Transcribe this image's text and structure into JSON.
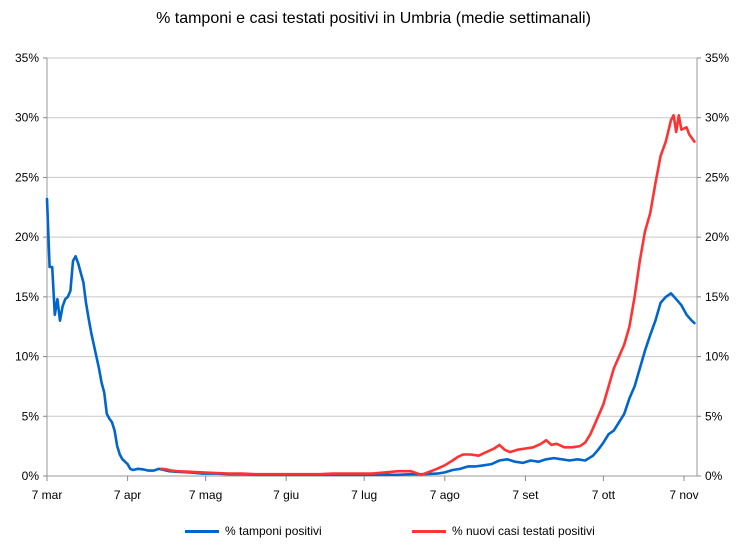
{
  "chart_data": {
    "type": "line",
    "title": "% tamponi e casi testati positivi in Umbria (medie settimanali)",
    "xlabel": "",
    "ylabel": "",
    "x_ticks": [
      "7 mar",
      "7 apr",
      "7 mag",
      "7 giu",
      "7 lug",
      "7 ago",
      "7 set",
      "7 ott",
      "7 nov"
    ],
    "x_tick_days": [
      0,
      31,
      61,
      92,
      122,
      153,
      184,
      214,
      245
    ],
    "x_range_days": [
      0,
      250
    ],
    "y_ticks": [
      "0%",
      "5%",
      "10%",
      "15%",
      "20%",
      "25%",
      "30%",
      "35%"
    ],
    "ylim": [
      0,
      35
    ],
    "grid": true,
    "legend_position": "bottom",
    "series": [
      {
        "name": "% tamponi positivi",
        "color": "#0066cc",
        "points": [
          [
            0,
            23.2
          ],
          [
            1,
            17.5
          ],
          [
            2,
            17.5
          ],
          [
            3,
            13.5
          ],
          [
            4,
            14.8
          ],
          [
            5,
            13.0
          ],
          [
            6,
            14.2
          ],
          [
            7,
            14.8
          ],
          [
            8,
            15.0
          ],
          [
            9,
            15.5
          ],
          [
            10,
            18.0
          ],
          [
            11,
            18.4
          ],
          [
            12,
            17.8
          ],
          [
            13,
            17.0
          ],
          [
            14,
            16.2
          ],
          [
            15,
            14.5
          ],
          [
            16,
            13.2
          ],
          [
            17,
            12.0
          ],
          [
            18,
            11.0
          ],
          [
            19,
            10.0
          ],
          [
            20,
            9.0
          ],
          [
            21,
            7.8
          ],
          [
            22,
            7.0
          ],
          [
            23,
            5.2
          ],
          [
            24,
            4.8
          ],
          [
            25,
            4.5
          ],
          [
            26,
            3.8
          ],
          [
            27,
            2.5
          ],
          [
            28,
            1.8
          ],
          [
            29,
            1.4
          ],
          [
            30,
            1.2
          ],
          [
            31,
            1.0
          ],
          [
            32,
            0.6
          ],
          [
            33,
            0.5
          ],
          [
            35,
            0.6
          ],
          [
            37,
            0.55
          ],
          [
            39,
            0.45
          ],
          [
            41,
            0.45
          ],
          [
            43,
            0.6
          ],
          [
            45,
            0.5
          ],
          [
            47,
            0.4
          ],
          [
            50,
            0.35
          ],
          [
            55,
            0.3
          ],
          [
            60,
            0.2
          ],
          [
            65,
            0.2
          ],
          [
            70,
            0.15
          ],
          [
            75,
            0.15
          ],
          [
            80,
            0.1
          ],
          [
            85,
            0.1
          ],
          [
            90,
            0.1
          ],
          [
            95,
            0.1
          ],
          [
            100,
            0.1
          ],
          [
            105,
            0.1
          ],
          [
            110,
            0.1
          ],
          [
            115,
            0.1
          ],
          [
            120,
            0.1
          ],
          [
            125,
            0.1
          ],
          [
            130,
            0.1
          ],
          [
            135,
            0.1
          ],
          [
            140,
            0.15
          ],
          [
            145,
            0.15
          ],
          [
            150,
            0.2
          ],
          [
            153,
            0.3
          ],
          [
            156,
            0.5
          ],
          [
            159,
            0.6
          ],
          [
            162,
            0.8
          ],
          [
            165,
            0.8
          ],
          [
            168,
            0.9
          ],
          [
            171,
            1.0
          ],
          [
            174,
            1.3
          ],
          [
            177,
            1.4
          ],
          [
            180,
            1.2
          ],
          [
            183,
            1.1
          ],
          [
            186,
            1.3
          ],
          [
            189,
            1.2
          ],
          [
            192,
            1.4
          ],
          [
            195,
            1.5
          ],
          [
            198,
            1.4
          ],
          [
            201,
            1.3
          ],
          [
            204,
            1.4
          ],
          [
            207,
            1.3
          ],
          [
            210,
            1.7
          ],
          [
            212,
            2.2
          ],
          [
            214,
            2.8
          ],
          [
            216,
            3.5
          ],
          [
            218,
            3.8
          ],
          [
            220,
            4.5
          ],
          [
            222,
            5.2
          ],
          [
            224,
            6.5
          ],
          [
            226,
            7.5
          ],
          [
            228,
            9.0
          ],
          [
            230,
            10.5
          ],
          [
            232,
            11.8
          ],
          [
            234,
            13.0
          ],
          [
            236,
            14.5
          ],
          [
            238,
            15.0
          ],
          [
            240,
            15.3
          ],
          [
            242,
            14.8
          ],
          [
            244,
            14.3
          ],
          [
            246,
            13.5
          ],
          [
            248,
            13.0
          ],
          [
            249,
            12.8
          ]
        ]
      },
      {
        "name": "% nuovi casi testati positivi",
        "color": "#ff3333",
        "points": [
          [
            44,
            0.6
          ],
          [
            46,
            0.55
          ],
          [
            48,
            0.45
          ],
          [
            50,
            0.4
          ],
          [
            55,
            0.35
          ],
          [
            60,
            0.3
          ],
          [
            65,
            0.25
          ],
          [
            70,
            0.2
          ],
          [
            75,
            0.2
          ],
          [
            80,
            0.15
          ],
          [
            85,
            0.15
          ],
          [
            90,
            0.15
          ],
          [
            95,
            0.15
          ],
          [
            100,
            0.15
          ],
          [
            105,
            0.15
          ],
          [
            110,
            0.2
          ],
          [
            115,
            0.2
          ],
          [
            120,
            0.2
          ],
          [
            125,
            0.2
          ],
          [
            130,
            0.3
          ],
          [
            135,
            0.4
          ],
          [
            140,
            0.4
          ],
          [
            144,
            0.1
          ],
          [
            147,
            0.35
          ],
          [
            150,
            0.6
          ],
          [
            153,
            0.9
          ],
          [
            156,
            1.3
          ],
          [
            158,
            1.6
          ],
          [
            160,
            1.8
          ],
          [
            163,
            1.8
          ],
          [
            166,
            1.7
          ],
          [
            169,
            2.0
          ],
          [
            172,
            2.3
          ],
          [
            174,
            2.6
          ],
          [
            176,
            2.2
          ],
          [
            178,
            2.0
          ],
          [
            181,
            2.2
          ],
          [
            184,
            2.3
          ],
          [
            187,
            2.4
          ],
          [
            190,
            2.7
          ],
          [
            192,
            3.0
          ],
          [
            194,
            2.6
          ],
          [
            196,
            2.7
          ],
          [
            199,
            2.4
          ],
          [
            202,
            2.4
          ],
          [
            205,
            2.5
          ],
          [
            207,
            2.8
          ],
          [
            209,
            3.5
          ],
          [
            211,
            4.5
          ],
          [
            213,
            5.5
          ],
          [
            214,
            6.0
          ],
          [
            216,
            7.5
          ],
          [
            218,
            9.0
          ],
          [
            220,
            10.0
          ],
          [
            222,
            11.0
          ],
          [
            224,
            12.5
          ],
          [
            226,
            15.0
          ],
          [
            228,
            18.0
          ],
          [
            230,
            20.5
          ],
          [
            232,
            22.0
          ],
          [
            234,
            24.5
          ],
          [
            236,
            26.8
          ],
          [
            238,
            28.0
          ],
          [
            240,
            29.8
          ],
          [
            241,
            30.2
          ],
          [
            242,
            28.8
          ],
          [
            243,
            30.2
          ],
          [
            244,
            29.0
          ],
          [
            246,
            29.2
          ],
          [
            247,
            28.6
          ],
          [
            248,
            28.3
          ],
          [
            249,
            28.0
          ]
        ]
      }
    ]
  }
}
